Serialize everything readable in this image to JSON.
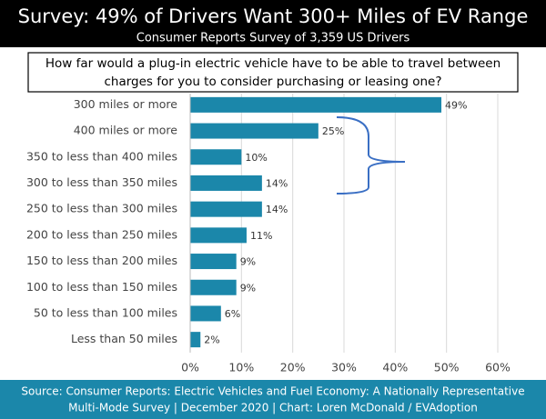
{
  "chart_data": {
    "type": "bar",
    "orientation": "horizontal",
    "title": "Survey: 49% of Drivers Want 300+ Miles of EV Range",
    "subtitle": "Consumer Reports Survey of 3,359 US Drivers",
    "question": [
      "How far would a plug-in electric vehicle have to be able to travel between",
      "charges for you to consider purchasing or leasing one?"
    ],
    "categories": [
      "300 miles or more",
      "400 miles or more",
      "350 to less than 400 miles",
      "300 to less than 350 miles",
      "250 to less than 300 miles",
      "200 to less than 250 miles",
      "150 to less than 200 miles",
      "100 to less than 150 miles",
      "50 to less than 100 miles",
      "Less than 50 miles"
    ],
    "values": [
      49,
      25,
      10,
      14,
      14,
      11,
      9,
      9,
      6,
      2
    ],
    "value_labels": [
      "49%",
      "25%",
      "10%",
      "14%",
      "14%",
      "11%",
      "9%",
      "9%",
      "6%",
      "2%"
    ],
    "color": "#1b87aa",
    "xlim": [
      0,
      60
    ],
    "xticks": [
      {
        "value": 0,
        "label": "0%"
      },
      {
        "value": 10,
        "label": "10%"
      },
      {
        "value": 20,
        "label": "20%"
      },
      {
        "value": 30,
        "label": "30%"
      },
      {
        "value": 40,
        "label": "40%"
      },
      {
        "value": 50,
        "label": "50%"
      },
      {
        "value": 60,
        "label": "60%"
      }
    ],
    "grid": true,
    "source": [
      "Source: Consumer Reports: Electric Vehicles and Fuel Economy: A Nationally Representative",
      "Multi-Mode Survey | December 2020 | Chart: Loren McDonald / EVAdoption"
    ]
  }
}
